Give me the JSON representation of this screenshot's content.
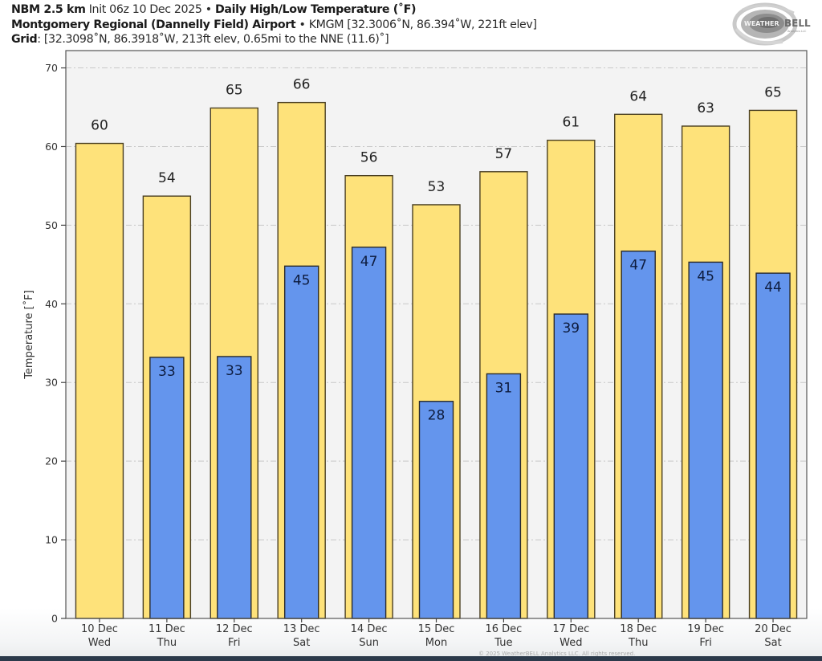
{
  "header": {
    "model": "NBM 2.5 km",
    "init": "Init 06z 10 Dec 2025",
    "bullet": "•",
    "product": "Daily High/Low Temperature (˚F)",
    "station_name": "Montgomery Regional (Dannelly Field) Airport",
    "station_info": "KMGM [32.3006˚N, 86.394˚W, 221ft elev]",
    "grid_label": "Grid",
    "grid_info": ": [32.3098˚N, 86.3918˚W, 213ft elev, 0.65mi to the NNE (11.6)˚]"
  },
  "logo": {
    "text_left": "WEATHER",
    "text_right": "BELL",
    "subtext": "Analytics LLC"
  },
  "footer": {
    "copyright": "© 2025 WeatherBELL Analytics LLC. All rights reserved."
  },
  "colors": {
    "high_bar": "#fee27a",
    "low_bar": "#6495ed",
    "bar_edge": "#4a3f22",
    "plot_bg": "#f3f3f3",
    "grid": "#c8c8c8",
    "low_label": "#0d1b3d",
    "high_label": "#222222"
  },
  "chart_data": {
    "type": "bar",
    "title": "Daily High/Low Temperature (˚F)",
    "xlabel": "",
    "ylabel": "Temperature [˚F]",
    "ylim": [
      0,
      72.2
    ],
    "yticks": [
      0,
      10,
      20,
      30,
      40,
      50,
      60,
      70
    ],
    "grid": true,
    "grid_style": "dashed horizontal",
    "categories": [
      "10 Dec",
      "11 Dec",
      "12 Dec",
      "13 Dec",
      "14 Dec",
      "15 Dec",
      "16 Dec",
      "17 Dec",
      "18 Dec",
      "19 Dec",
      "20 Dec"
    ],
    "category_weekdays": [
      "Wed",
      "Thu",
      "Fri",
      "Sat",
      "Sun",
      "Mon",
      "Tue",
      "Wed",
      "Thu",
      "Fri",
      "Sat"
    ],
    "series": [
      {
        "name": "High",
        "values": [
          60.4,
          53.7,
          64.9,
          65.6,
          56.3,
          52.6,
          56.8,
          60.8,
          64.1,
          62.6,
          64.6
        ],
        "labels": [
          "60",
          "54",
          "65",
          "66",
          "56",
          "53",
          "57",
          "61",
          "64",
          "63",
          "65"
        ]
      },
      {
        "name": "Low",
        "values": [
          null,
          33.2,
          33.3,
          44.8,
          47.2,
          27.6,
          31.1,
          38.7,
          46.7,
          45.3,
          43.9
        ],
        "labels": [
          null,
          "33",
          "33",
          "45",
          "47",
          "28",
          "31",
          "39",
          "47",
          "45",
          "44"
        ]
      }
    ]
  }
}
